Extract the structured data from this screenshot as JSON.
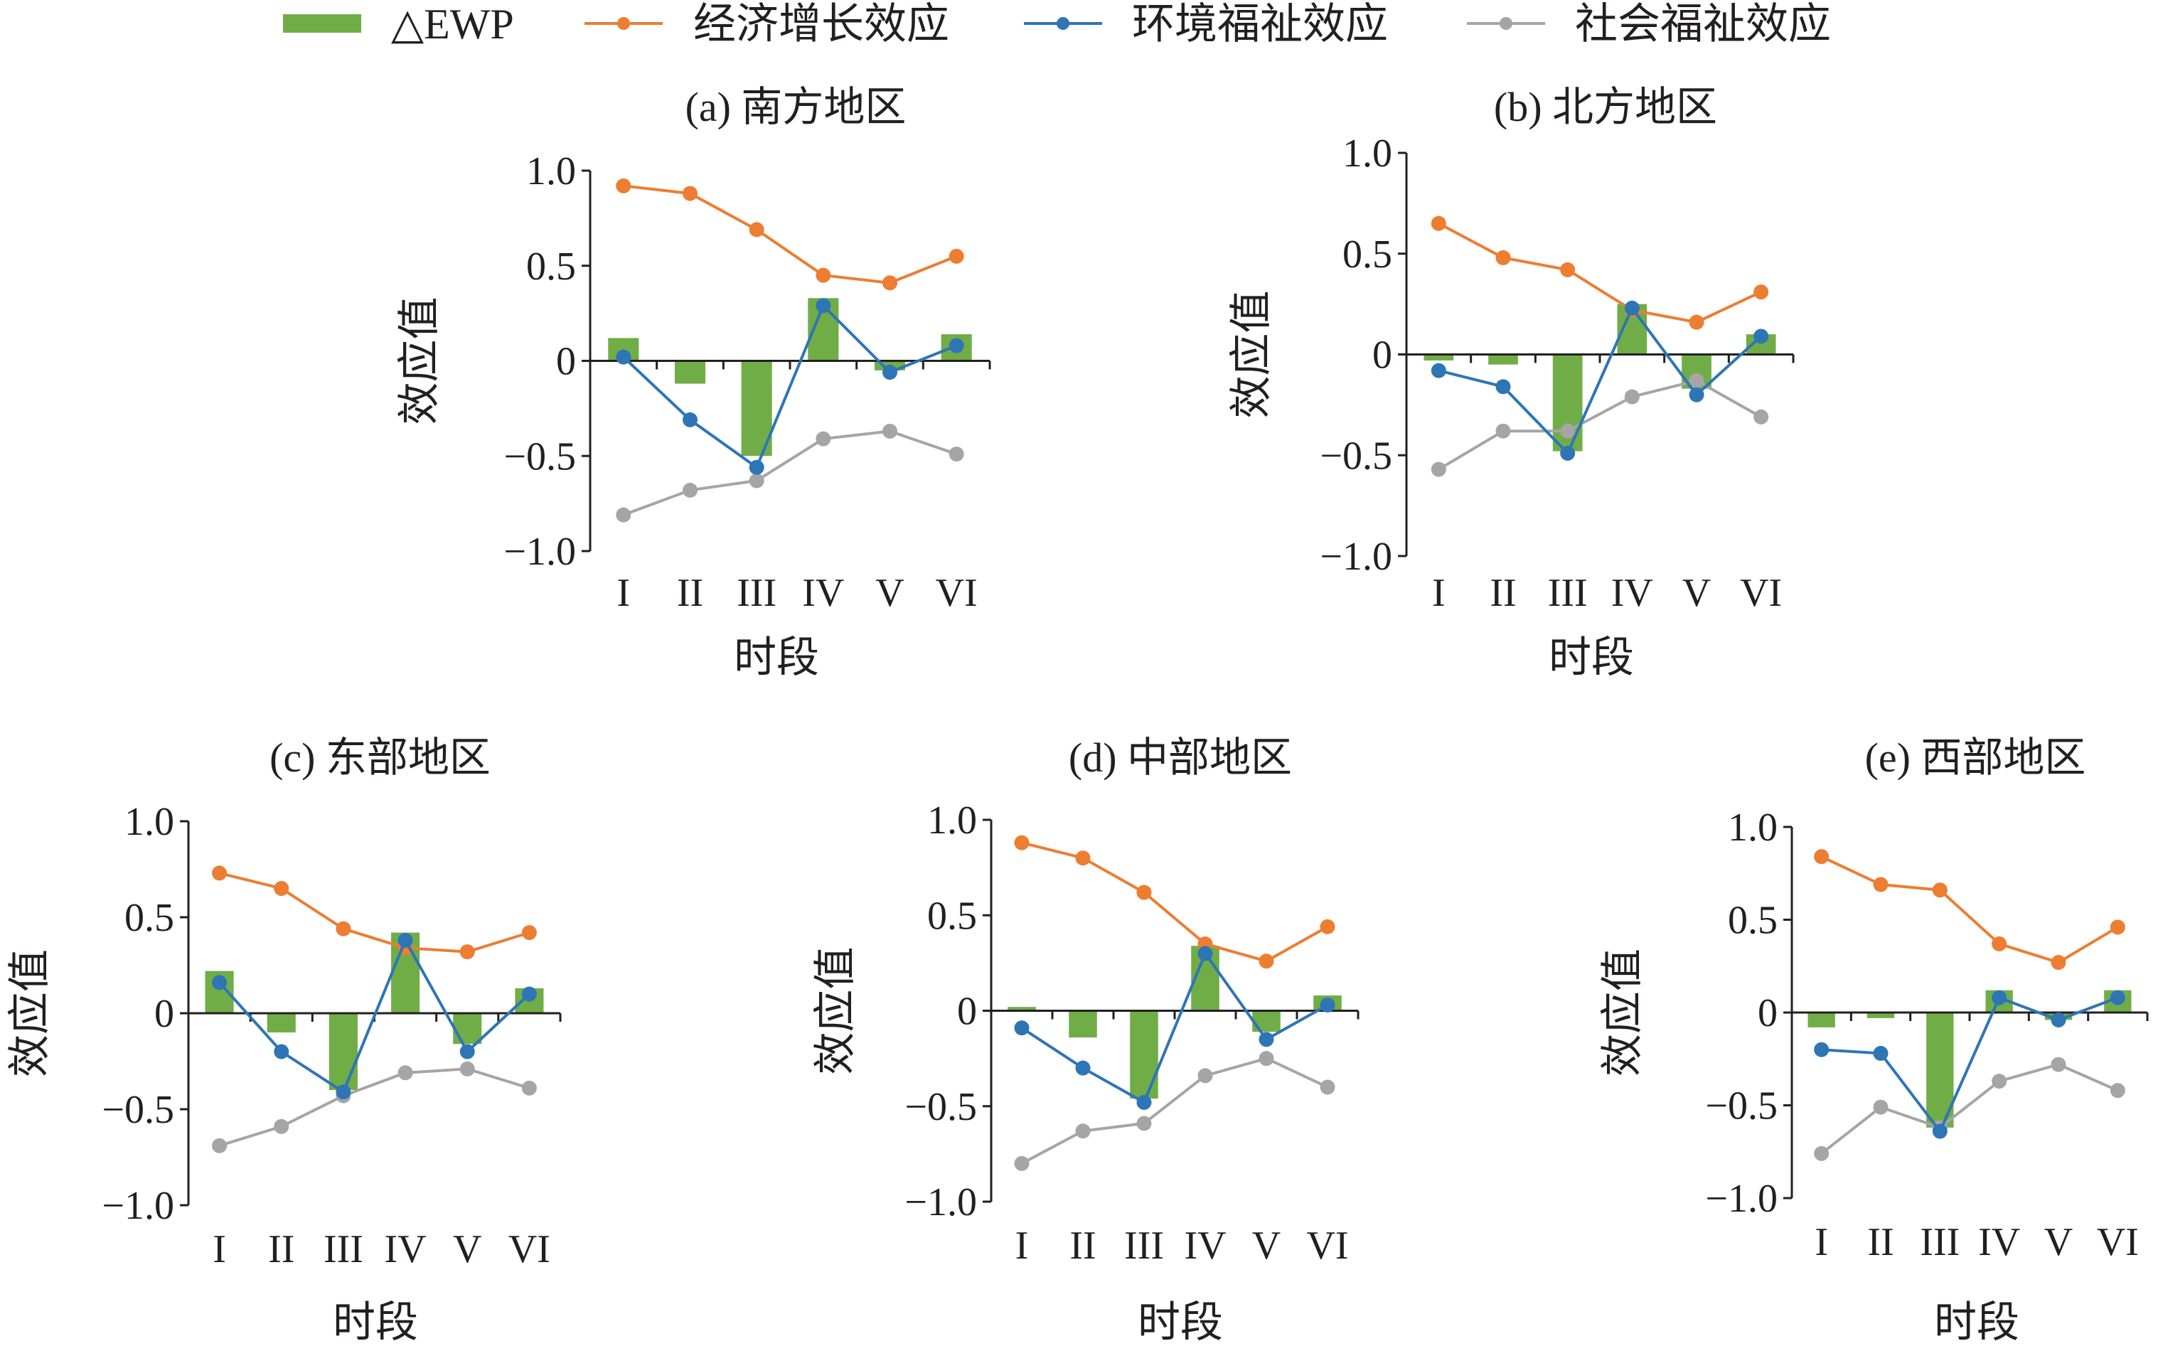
{
  "legend": {
    "items": [
      {
        "label": "△EWP",
        "kind": "bar",
        "color": "#70ad47"
      },
      {
        "label": "经济增长效应",
        "kind": "line",
        "color": "#ed7d31"
      },
      {
        "label": "环境福祉效应",
        "kind": "line",
        "color": "#2e75b6"
      },
      {
        "label": "社会福祉效应",
        "kind": "line",
        "color": "#a5a5a5"
      }
    ]
  },
  "colors": {
    "bar": "#70ad47",
    "econ": "#ed7d31",
    "env": "#2e75b6",
    "social": "#a5a5a5",
    "axis": "#231f20"
  },
  "chart_data": [
    {
      "type": "bar",
      "title": "(a) 南方地区",
      "xlabel": "时段",
      "ylabel": "效应值",
      "categories": [
        "I",
        "II",
        "III",
        "IV",
        "V",
        "VI"
      ],
      "yticks": [
        "1.0",
        "0.5",
        "0",
        "-0.5",
        "-1.0"
      ],
      "ylim": [
        -1.0,
        1.0
      ],
      "series": [
        {
          "name": "△EWP",
          "kind": "bar",
          "values": [
            0.12,
            -0.12,
            -0.5,
            0.33,
            -0.05,
            0.14
          ]
        },
        {
          "name": "经济增长效应",
          "kind": "line",
          "values": [
            0.92,
            0.88,
            0.69,
            0.45,
            0.41,
            0.55
          ]
        },
        {
          "name": "环境福祉效应",
          "kind": "line",
          "values": [
            0.02,
            -0.31,
            -0.56,
            0.29,
            -0.06,
            0.08
          ]
        },
        {
          "name": "社会福祉效应",
          "kind": "line",
          "values": [
            -0.81,
            -0.68,
            -0.63,
            -0.41,
            -0.37,
            -0.49
          ]
        }
      ]
    },
    {
      "type": "bar",
      "title": "(b) 北方地区",
      "xlabel": "时段",
      "ylabel": "效应值",
      "categories": [
        "I",
        "II",
        "III",
        "IV",
        "V",
        "VI"
      ],
      "yticks": [
        "1.0",
        "0.5",
        "0",
        "-0.5",
        "-1.0"
      ],
      "ylim": [
        -1.0,
        1.0
      ],
      "series": [
        {
          "name": "△EWP",
          "kind": "bar",
          "values": [
            -0.03,
            -0.05,
            -0.48,
            0.25,
            -0.17,
            0.1
          ]
        },
        {
          "name": "经济增长效应",
          "kind": "line",
          "values": [
            0.65,
            0.48,
            0.42,
            0.22,
            0.16,
            0.31
          ]
        },
        {
          "name": "环境福祉效应",
          "kind": "line",
          "values": [
            -0.08,
            -0.16,
            -0.49,
            0.23,
            -0.2,
            0.09
          ]
        },
        {
          "name": "社会福祉效应",
          "kind": "line",
          "values": [
            -0.57,
            -0.38,
            -0.38,
            -0.21,
            -0.13,
            -0.31
          ]
        }
      ]
    },
    {
      "type": "bar",
      "title": "(c) 东部地区",
      "xlabel": "时段",
      "ylabel": "效应值",
      "categories": [
        "I",
        "II",
        "III",
        "IV",
        "V",
        "VI"
      ],
      "yticks": [
        "1.0",
        "0.5",
        "0",
        "-0.5",
        "-1.0"
      ],
      "ylim": [
        -1.0,
        1.0
      ],
      "series": [
        {
          "name": "△EWP",
          "kind": "bar",
          "values": [
            0.22,
            -0.1,
            -0.4,
            0.42,
            -0.16,
            0.13
          ]
        },
        {
          "name": "经济增长效应",
          "kind": "line",
          "values": [
            0.73,
            0.65,
            0.44,
            0.34,
            0.32,
            0.42
          ]
        },
        {
          "name": "环境福祉效应",
          "kind": "line",
          "values": [
            0.16,
            -0.2,
            -0.41,
            0.38,
            -0.2,
            0.1
          ]
        },
        {
          "name": "社会福祉效应",
          "kind": "line",
          "values": [
            -0.69,
            -0.59,
            -0.43,
            -0.31,
            -0.29,
            -0.39
          ]
        }
      ]
    },
    {
      "type": "bar",
      "title": "(d) 中部地区",
      "xlabel": "时段",
      "ylabel": "效应值",
      "categories": [
        "I",
        "II",
        "III",
        "IV",
        "V",
        "VI"
      ],
      "yticks": [
        "1.0",
        "0.5",
        "0",
        "-0.5",
        "-1.0"
      ],
      "ylim": [
        -1.0,
        1.0
      ],
      "series": [
        {
          "name": "△EWP",
          "kind": "bar",
          "values": [
            0.02,
            -0.14,
            -0.46,
            0.34,
            -0.11,
            0.08
          ]
        },
        {
          "name": "经济增长效应",
          "kind": "line",
          "values": [
            0.88,
            0.8,
            0.62,
            0.35,
            0.26,
            0.44
          ]
        },
        {
          "name": "环境福祉效应",
          "kind": "line",
          "values": [
            -0.09,
            -0.3,
            -0.48,
            0.3,
            -0.15,
            0.03
          ]
        },
        {
          "name": "社会福祉效应",
          "kind": "line",
          "values": [
            -0.8,
            -0.63,
            -0.59,
            -0.34,
            -0.25,
            -0.4
          ]
        }
      ]
    },
    {
      "type": "bar",
      "title": "(e) 西部地区",
      "xlabel": "时段",
      "ylabel": "效应值",
      "categories": [
        "I",
        "II",
        "III",
        "IV",
        "V",
        "VI"
      ],
      "yticks": [
        "1.0",
        "0.5",
        "0",
        "-0.5",
        "-1.0"
      ],
      "ylim": [
        -1.0,
        1.0
      ],
      "series": [
        {
          "name": "△EWP",
          "kind": "bar",
          "values": [
            -0.08,
            -0.03,
            -0.62,
            0.12,
            -0.04,
            0.12
          ]
        },
        {
          "name": "经济增长效应",
          "kind": "line",
          "values": [
            0.84,
            0.69,
            0.66,
            0.37,
            0.27,
            0.46
          ]
        },
        {
          "name": "环境福祉效应",
          "kind": "line",
          "values": [
            -0.2,
            -0.22,
            -0.64,
            0.08,
            -0.04,
            0.08
          ]
        },
        {
          "name": "社会福祉效应",
          "kind": "line",
          "values": [
            -0.76,
            -0.51,
            -0.62,
            -0.37,
            -0.28,
            -0.42
          ]
        }
      ]
    }
  ]
}
